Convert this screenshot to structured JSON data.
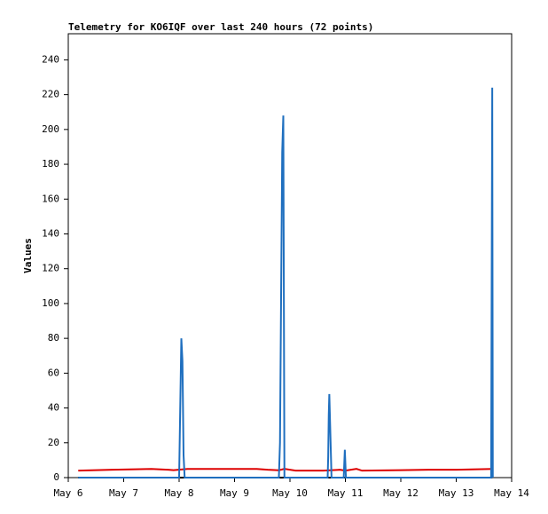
{
  "chart_data": {
    "type": "line",
    "title": "Telemetry for KO6IQF over last 240 hours (72 points)",
    "y_label": "Values",
    "xlim": [
      6,
      14
    ],
    "xticks": [
      {
        "value": 6,
        "label": "May 6"
      },
      {
        "value": 7,
        "label": "May 7"
      },
      {
        "value": 8,
        "label": "May 8"
      },
      {
        "value": 9,
        "label": "May 9"
      },
      {
        "value": 10,
        "label": "May 10"
      },
      {
        "value": 11,
        "label": "May 11"
      },
      {
        "value": 12,
        "label": "May 12"
      },
      {
        "value": 13,
        "label": "May 13"
      },
      {
        "value": 14,
        "label": "May 14"
      }
    ],
    "ylim": [
      0,
      255
    ],
    "yticks": [
      0,
      20,
      40,
      60,
      80,
      100,
      120,
      140,
      160,
      180,
      200,
      220,
      240
    ],
    "grid": false,
    "series": [
      {
        "color": "#000000",
        "x": [
          6.18,
          13.65
        ],
        "values": [
          0,
          0
        ]
      },
      {
        "color": "#dd0000",
        "x": [
          6.18,
          6.8,
          7.5,
          7.8,
          7.9,
          8.15,
          9.4,
          9.6,
          9.8,
          9.9,
          10.1,
          10.6,
          10.9,
          11.0,
          11.2,
          11.3,
          12.0,
          12.5,
          13.0,
          13.65
        ],
        "values": [
          4,
          4.5,
          5,
          4.5,
          4.3,
          5,
          5,
          4.5,
          4.2,
          5,
          4,
          4,
          4.5,
          4,
          5,
          4,
          4.3,
          4.5,
          4.5,
          5
        ]
      },
      {
        "color": "#1f6fbf",
        "x": [
          6.18,
          8.0,
          8.02,
          8.04,
          8.06,
          8.08,
          8.1,
          9.8,
          9.82,
          9.83,
          9.84,
          9.85,
          9.86,
          9.88,
          9.9,
          10.68,
          10.69,
          10.7,
          10.71,
          10.73,
          10.75,
          10.97,
          10.99,
          11.01,
          13.63,
          13.65,
          13.66
        ],
        "values": [
          0,
          0,
          40,
          80,
          67,
          13,
          0,
          0,
          20,
          62,
          104,
          145,
          187,
          208,
          0,
          0,
          12,
          36,
          48,
          24,
          0,
          0,
          16,
          0,
          0,
          224,
          0
        ]
      }
    ]
  }
}
